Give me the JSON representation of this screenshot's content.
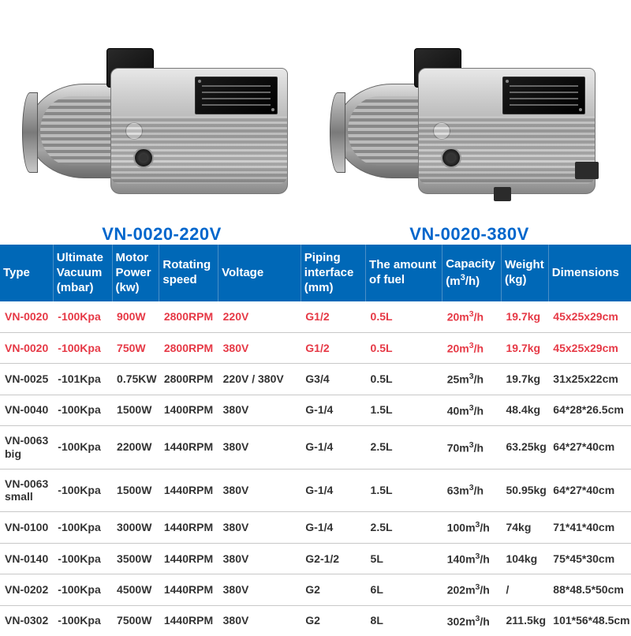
{
  "products": [
    {
      "label": "VN-0020-220V",
      "variant": "a"
    },
    {
      "label": "VN-0020-380V",
      "variant": "b"
    }
  ],
  "table": {
    "header_bg": "#0068b7",
    "header_fg": "#ffffff",
    "highlight_color": "#e63946",
    "border_color": "#c8c8c8",
    "col_widths_pct": [
      9,
      10,
      8,
      10,
      14,
      11,
      13,
      10,
      8,
      14
    ],
    "columns": [
      "Type",
      "Ultimate Vacuum (mbar)",
      "Motor Power (kw)",
      "Rotating speed",
      "Voltage",
      "Piping interface (mm)",
      "The amount of fuel",
      "Capacity (m³/h)",
      "Weight (kg)",
      "Dimensions"
    ],
    "rows": [
      {
        "hl": true,
        "cells": [
          "VN-0020",
          "-100Kpa",
          "900W",
          "2800RPM",
          "220V",
          "G1/2",
          "0.5L",
          "20m³/h",
          "19.7kg",
          "45x25x29cm"
        ]
      },
      {
        "hl": true,
        "cells": [
          "VN-0020",
          "-100Kpa",
          "750W",
          "2800RPM",
          "380V",
          "G1/2",
          "0.5L",
          "20m³/h",
          "19.7kg",
          "45x25x29cm"
        ]
      },
      {
        "hl": false,
        "cells": [
          "VN-0025",
          "-101Kpa",
          "0.75KW",
          "2800RPM",
          "220V / 380V",
          "G3/4",
          "0.5L",
          "25m³/h",
          "19.7kg",
          "31x25x22cm"
        ]
      },
      {
        "hl": false,
        "cells": [
          "VN-0040",
          "-100Kpa",
          "1500W",
          "1400RPM",
          "380V",
          "G-1/4",
          "1.5L",
          "40m³/h",
          "48.4kg",
          "64*28*26.5cm"
        ]
      },
      {
        "hl": false,
        "cells": [
          "VN-0063 big",
          "-100Kpa",
          "2200W",
          "1440RPM",
          "380V",
          "G-1/4",
          "2.5L",
          "70m³/h",
          "63.25kg",
          "64*27*40cm"
        ]
      },
      {
        "hl": false,
        "cells": [
          "VN-0063 small",
          "-100Kpa",
          "1500W",
          "1440RPM",
          "380V",
          "G-1/4",
          "1.5L",
          "63m³/h",
          "50.95kg",
          "64*27*40cm"
        ]
      },
      {
        "hl": false,
        "cells": [
          "VN-0100",
          "-100Kpa",
          "3000W",
          "1440RPM",
          "380V",
          "G-1/4",
          "2.5L",
          "100m³/h",
          "74kg",
          "71*41*40cm"
        ]
      },
      {
        "hl": false,
        "cells": [
          "VN-0140",
          "-100Kpa",
          "3500W",
          "1440RPM",
          "380V",
          "G2-1/2",
          "5L",
          "140m³/h",
          "104kg",
          "75*45*30cm"
        ]
      },
      {
        "hl": false,
        "cells": [
          "VN-0202",
          "-100Kpa",
          "4500W",
          "1440RPM",
          "380V",
          "G2",
          "6L",
          "202m³/h",
          "/",
          "88*48.5*50cm"
        ]
      },
      {
        "hl": false,
        "cells": [
          "VN-0302",
          "-100Kpa",
          "7500W",
          "1440RPM",
          "380V",
          "G2",
          "8L",
          "302m³/h",
          "211.5kg",
          "101*56*48.5cm"
        ]
      }
    ]
  }
}
